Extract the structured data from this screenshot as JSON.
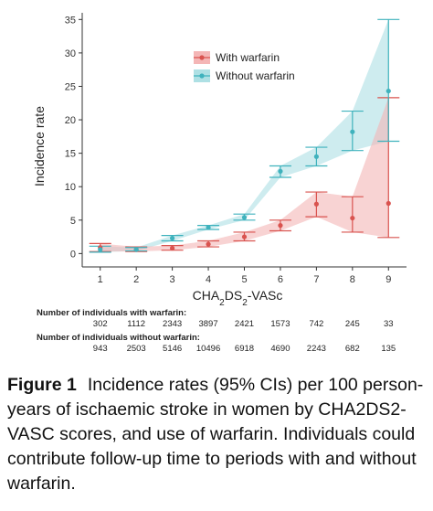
{
  "chart_data": {
    "type": "line",
    "xlabel_html": "CHA<sub>2</sub>DS<sub>2</sub>-VASc",
    "xlabel": "CHA2DS2-VASc",
    "ylabel": "Incidence rate",
    "categories": [
      1,
      2,
      3,
      4,
      5,
      6,
      7,
      8,
      9
    ],
    "ylim": [
      -2,
      36
    ],
    "yticks": [
      0,
      5,
      10,
      15,
      20,
      25,
      30,
      35
    ],
    "grid": false,
    "legend_position": "top-right",
    "series": [
      {
        "name": "With warfarin",
        "color": "#d9534f",
        "band_color": "#f4b6b6",
        "values": [
          0.9,
          0.6,
          0.8,
          1.4,
          2.5,
          4.2,
          7.4,
          5.3,
          7.5
        ],
        "lower": [
          0.3,
          0.3,
          0.5,
          1.0,
          1.9,
          3.4,
          5.5,
          3.2,
          2.4
        ],
        "upper": [
          1.5,
          1.0,
          1.2,
          1.9,
          3.2,
          5.0,
          9.2,
          8.5,
          23.3
        ]
      },
      {
        "name": "Without warfarin",
        "color": "#3fb2bd",
        "band_color": "#aee0e4",
        "values": [
          0.6,
          0.6,
          2.3,
          3.9,
          5.4,
          12.3,
          14.5,
          18.2,
          24.3
        ],
        "lower": [
          0.2,
          0.4,
          1.9,
          3.6,
          5.0,
          11.4,
          13.1,
          15.4,
          16.8
        ],
        "upper": [
          1.1,
          0.9,
          2.7,
          4.2,
          5.9,
          13.1,
          15.9,
          21.3,
          35.0
        ]
      }
    ]
  },
  "counts": {
    "with_label": "Number of individuals with warfarin:",
    "with_values": [
      "302",
      "1112",
      "2343",
      "3897",
      "2421",
      "1573",
      "742",
      "245",
      "33"
    ],
    "without_label": "Number of individuals without warfarin:",
    "without_values": [
      "943",
      "2503",
      "5146",
      "10496",
      "6918",
      "4690",
      "2243",
      "682",
      "135"
    ]
  },
  "caption": {
    "label": "Figure 1",
    "text": "Incidence rates (95% CIs) per 100 person-years of ischaemic stroke in women by CHA2DS2-VASC scores, and use of warfarin. Individuals could contribute follow-up time to periods with and without warfarin."
  }
}
